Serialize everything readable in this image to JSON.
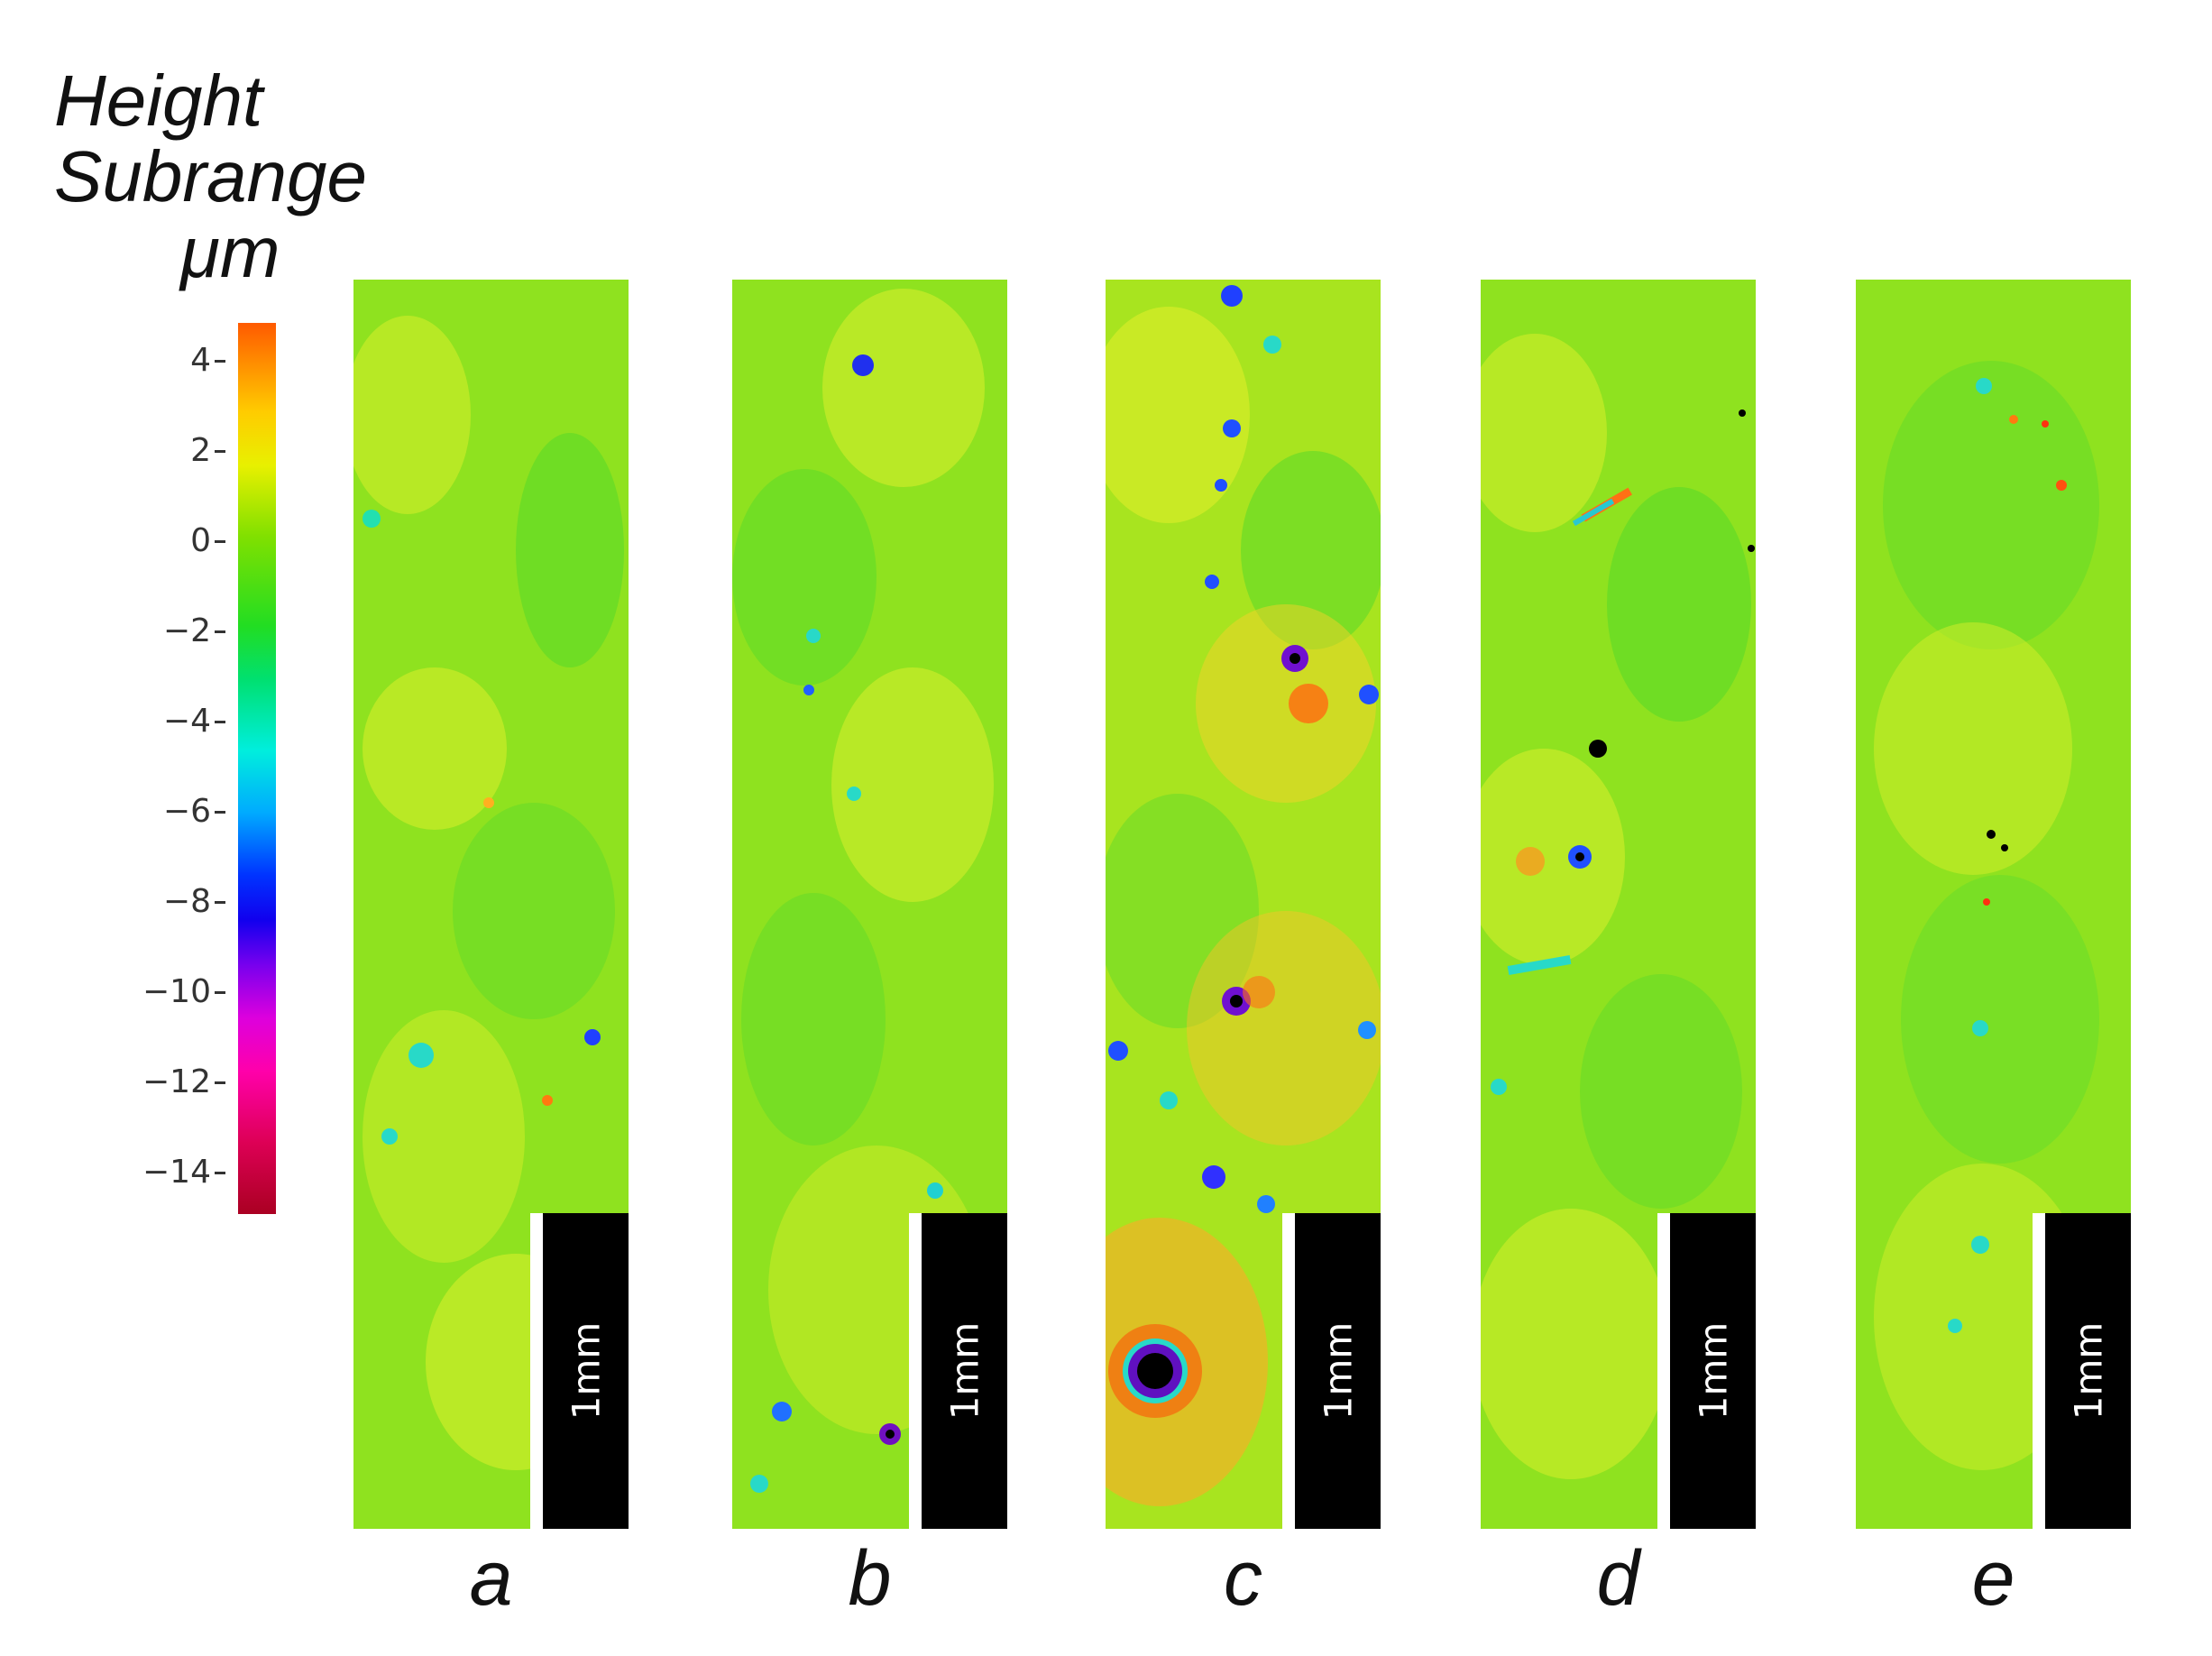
{
  "legend": {
    "title_line1": "Height",
    "title_line2": "Subrange",
    "unit": "μm",
    "ticks": [
      "4",
      "2",
      "0",
      "−2",
      "−4",
      "−6",
      "−8",
      "−10",
      "−12",
      "−14"
    ]
  },
  "panels": [
    {
      "label": "a",
      "scale_bar": "1mm"
    },
    {
      "label": "b",
      "scale_bar": "1mm"
    },
    {
      "label": "c",
      "scale_bar": "1mm"
    },
    {
      "label": "d",
      "scale_bar": "1mm"
    },
    {
      "label": "e",
      "scale_bar": "1mm"
    }
  ]
}
